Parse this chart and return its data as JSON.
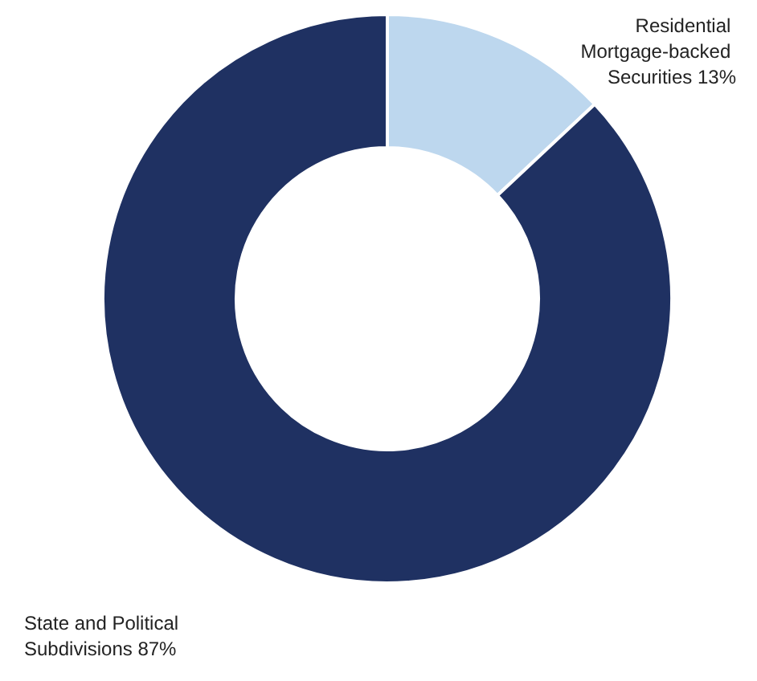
{
  "chart_data": {
    "type": "donut",
    "categories": [
      "Residential Mortgage-backed Securities",
      "State and Political Subdivisions"
    ],
    "values": [
      13,
      87
    ],
    "colors": [
      "#bdd7ee",
      "#1f3162"
    ],
    "value_labels": [
      "13%",
      "87%"
    ],
    "legend": false
  }
}
